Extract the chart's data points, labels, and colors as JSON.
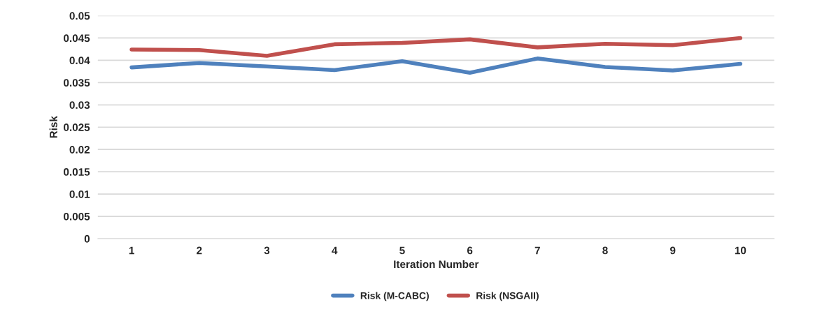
{
  "chart_data": {
    "type": "line",
    "xlabel": "Iteration Number",
    "ylabel": "Risk",
    "categories": [
      "1",
      "2",
      "3",
      "4",
      "5",
      "6",
      "7",
      "8",
      "9",
      "10"
    ],
    "series": [
      {
        "name": "Risk (M-CABC)",
        "color": "#4f81bd",
        "values": [
          0.0384,
          0.0394,
          0.0386,
          0.0378,
          0.0398,
          0.0372,
          0.0404,
          0.0385,
          0.0377,
          0.0392
        ]
      },
      {
        "name": "Risk (NSGAII)",
        "color": "#c0504d",
        "values": [
          0.0424,
          0.0423,
          0.041,
          0.0436,
          0.0439,
          0.0447,
          0.0429,
          0.0437,
          0.0434,
          0.045
        ]
      }
    ],
    "ylim": [
      0,
      0.05
    ],
    "yticks": [
      0,
      0.005,
      0.01,
      0.015,
      0.02,
      0.025,
      0.03,
      0.035,
      0.04,
      0.045,
      0.05
    ],
    "grid": "y",
    "legend": "bottom",
    "marker": "none",
    "line_style": "solid"
  }
}
